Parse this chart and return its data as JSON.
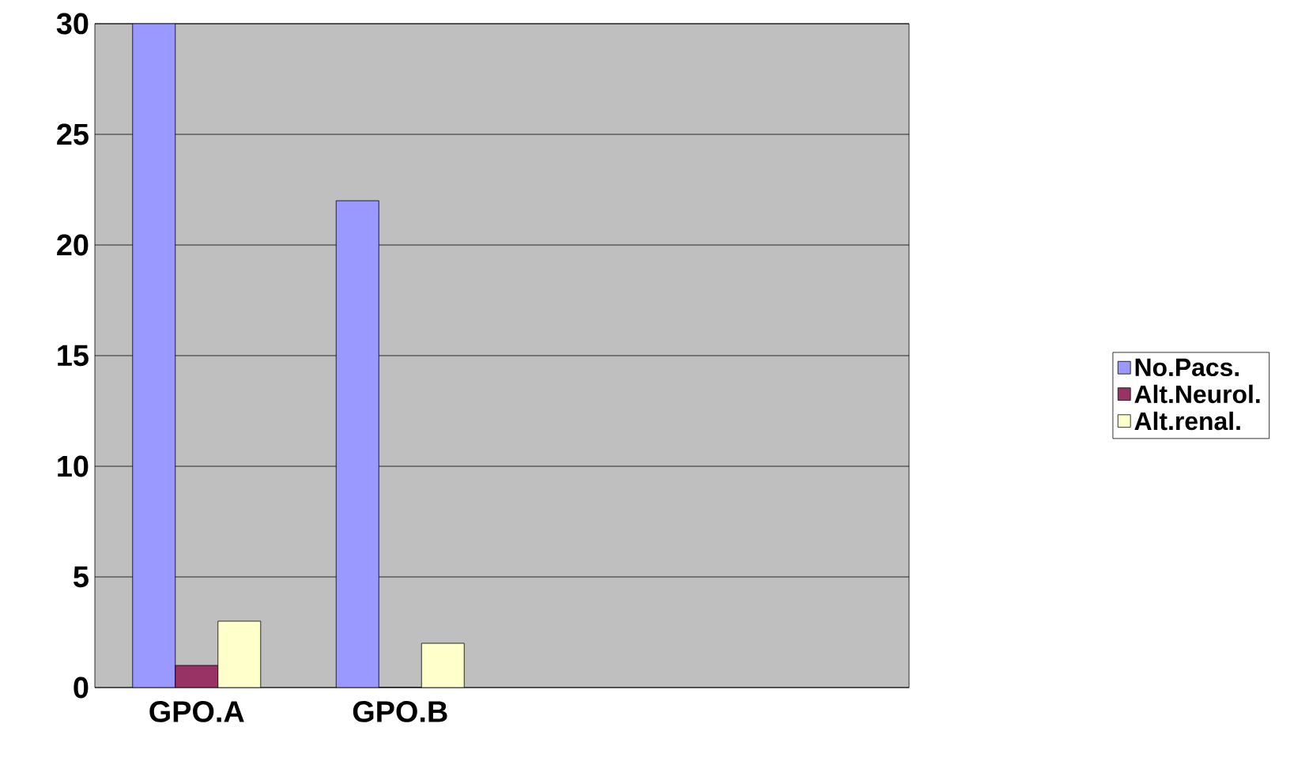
{
  "chart_data": {
    "type": "bar",
    "categories": [
      "GPO.A",
      "GPO.B",
      null,
      null
    ],
    "series": [
      {
        "name": "No.Pacs.",
        "color": "#9999ff",
        "values": [
          30,
          22,
          null,
          null
        ]
      },
      {
        "name": "Alt.Neurol.",
        "color": "#993366",
        "values": [
          1,
          0,
          null,
          null
        ]
      },
      {
        "name": "Alt.renal.",
        "color": "#ffffcc",
        "values": [
          3,
          2,
          null,
          null
        ]
      }
    ],
    "ylim": [
      0,
      30
    ],
    "yticks": [
      0,
      5,
      10,
      15,
      20,
      25,
      30
    ],
    "grid": "y",
    "legend": "right"
  }
}
